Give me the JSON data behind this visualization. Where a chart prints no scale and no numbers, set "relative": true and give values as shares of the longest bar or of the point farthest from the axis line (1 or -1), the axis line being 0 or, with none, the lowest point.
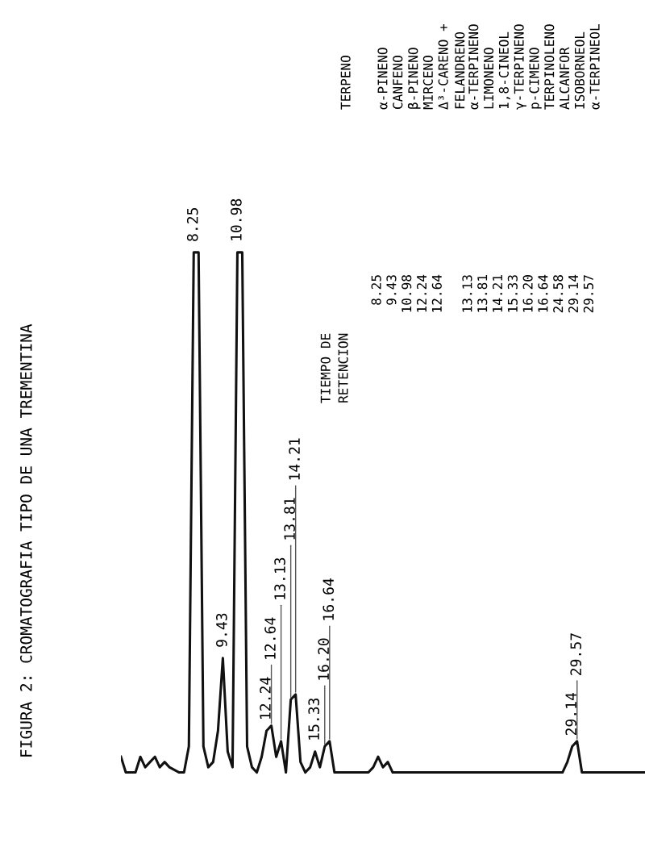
{
  "chart_data": {
    "type": "line",
    "title": "FIGURA 2: CROMATOGRAFIA TIPO DE UNA TREMENTINA",
    "relative": true,
    "legend": false,
    "marker": "none",
    "line_style": "solid",
    "tick_labels": false,
    "categories": [
      null,
      null,
      null,
      null,
      null,
      null,
      null,
      null,
      null,
      null,
      null,
      null,
      null,
      null,
      null,
      null,
      null,
      null,
      null,
      null,
      null,
      null,
      null,
      null,
      null,
      null,
      null,
      null,
      null,
      null,
      null,
      null,
      null,
      null,
      null,
      null,
      null,
      null,
      null,
      null,
      null,
      null,
      null,
      null,
      null,
      null,
      null,
      null,
      null,
      null,
      null,
      null,
      null,
      null,
      null,
      null,
      null,
      null,
      null,
      null,
      null,
      null,
      null,
      null,
      null,
      null,
      null,
      null,
      null,
      null,
      null,
      null,
      null,
      null,
      null,
      null,
      null,
      null,
      null,
      null,
      null,
      null,
      null,
      null,
      null,
      null,
      null,
      null,
      null,
      null,
      null,
      null,
      null,
      null,
      null,
      null,
      null,
      null,
      null,
      null,
      null,
      null,
      null,
      null,
      null,
      null,
      null,
      null,
      null
    ],
    "series": [
      {
        "color": "#111111",
        "values": [
          0.03,
          0,
          0,
          0,
          0.03,
          0.01,
          0.02,
          0.03,
          0.01,
          0.02,
          0.01,
          0.005,
          0,
          0,
          0.05,
          1,
          1,
          0.05,
          0.01,
          0.02,
          0.08,
          0.22,
          0.04,
          0.01,
          1,
          1,
          0.05,
          0.01,
          0,
          0.03,
          0.08,
          0.09,
          0.03,
          0.06,
          0,
          0.14,
          0.15,
          0.02,
          0,
          0.01,
          0.04,
          0.01,
          0.05,
          0.06,
          0,
          0,
          0,
          0,
          0,
          0,
          0,
          0,
          0.01,
          0.03,
          0.01,
          0.02,
          0,
          0,
          0,
          0,
          0,
          0,
          0,
          0,
          0,
          0,
          0,
          0,
          0,
          0,
          0,
          0,
          0,
          0,
          0,
          0,
          0,
          0,
          0,
          0,
          0,
          0,
          0,
          0,
          0,
          0,
          0,
          0,
          0,
          0,
          0,
          0,
          0.02,
          0.05,
          0.06,
          0,
          0,
          0,
          0,
          0,
          0,
          0,
          0,
          0,
          0,
          0,
          0,
          0,
          0
        ]
      }
    ],
    "annotations": [
      {
        "text": "8.25",
        "y": 1
      },
      {
        "text": "9.43",
        "y": 0.22
      },
      {
        "text": "10.98",
        "y": 1
      },
      {
        "text": "12.24",
        "y": 0.08
      },
      {
        "text": "12.64",
        "y": 0.09
      },
      {
        "text": "13.13",
        "y": 0.06
      },
      {
        "text": "13.81",
        "y": 0.14
      },
      {
        "text": "14.21",
        "y": 0.15
      },
      {
        "text": "15.33",
        "y": 0.04
      },
      {
        "text": "16.20",
        "y": 0.05
      },
      {
        "text": "16.64",
        "y": 0.06
      },
      {
        "text": "29.14",
        "y": 0.05
      },
      {
        "text": "29.57",
        "y": 0.06
      },
      "TIEMPO DE\nRETENCION",
      "TERPENO",
      "8.25",
      "α-PINENO",
      "9.43",
      "CANFENO",
      "10.98",
      "β-PINENO",
      "12.24",
      "MIRCENO",
      "12.64",
      "Δ³-CARENO +\nFELANDRENO",
      "13.13",
      "α-TERPINENO",
      "13.81",
      "LIMONENO",
      "14.21",
      "1,8-CINEOL",
      "15.33",
      "γ-TERPINENO",
      "16.20",
      "p-CIMENO",
      "16.64",
      "TERPINOLENO",
      "24.58",
      "ALCANFOR",
      "29.14",
      "ISOBORNEOL",
      "29.57",
      "α-TERPINEOL"
    ]
  }
}
